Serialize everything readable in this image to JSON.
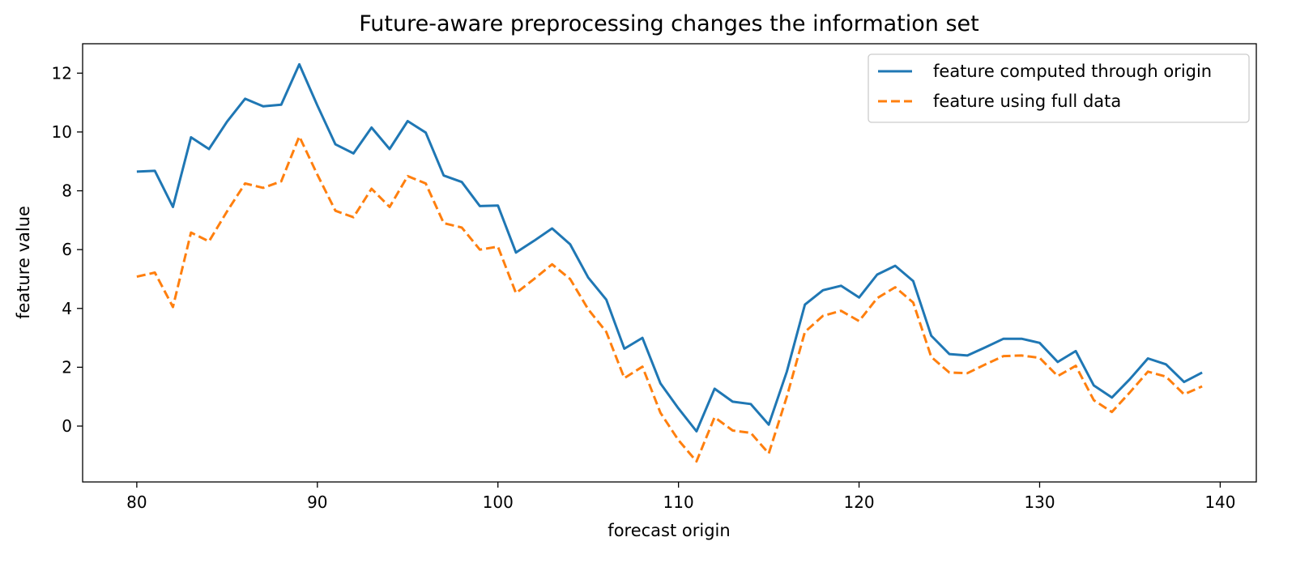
{
  "chart_data": {
    "type": "line",
    "title": "Future-aware preprocessing changes the information set",
    "xlabel": "forecast origin",
    "ylabel": "feature value",
    "xlim": [
      77,
      142
    ],
    "ylim": [
      -1.9,
      13.0
    ],
    "xticks": [
      80,
      90,
      100,
      110,
      120,
      130,
      140
    ],
    "yticks": [
      0,
      2,
      4,
      6,
      8,
      10,
      12
    ],
    "grid": false,
    "legend_position": "top-right",
    "x": [
      80,
      81,
      82,
      83,
      84,
      85,
      86,
      87,
      88,
      89,
      90,
      91,
      92,
      93,
      94,
      95,
      96,
      97,
      98,
      99,
      100,
      101,
      102,
      103,
      104,
      105,
      106,
      107,
      108,
      109,
      110,
      111,
      112,
      113,
      114,
      115,
      116,
      117,
      118,
      119,
      120,
      121,
      122,
      123,
      124,
      125,
      126,
      127,
      128,
      129,
      130,
      131,
      132,
      133,
      134,
      135,
      136,
      137,
      138,
      139
    ],
    "series": [
      {
        "name": "feature computed through origin",
        "color": "#1f77b4",
        "style": "solid",
        "values": [
          8.65,
          8.68,
          7.45,
          9.82,
          9.42,
          10.35,
          11.13,
          10.87,
          10.93,
          12.3,
          10.9,
          9.58,
          9.27,
          10.15,
          9.42,
          10.37,
          9.98,
          8.52,
          8.3,
          7.48,
          7.5,
          5.9,
          6.3,
          6.72,
          6.18,
          5.05,
          4.3,
          2.63,
          3.0,
          1.45,
          0.6,
          -0.18,
          1.27,
          0.83,
          0.75,
          0.05,
          1.85,
          4.13,
          4.62,
          4.77,
          4.37,
          5.15,
          5.45,
          4.93,
          3.07,
          2.45,
          2.4,
          2.68,
          2.97,
          2.97,
          2.83,
          2.18,
          2.55,
          1.38,
          0.97,
          1.6,
          2.3,
          2.1,
          1.5,
          1.82
        ]
      },
      {
        "name": "feature using full data",
        "color": "#ff7f0e",
        "style": "dashed",
        "values": [
          5.08,
          5.22,
          4.05,
          6.58,
          6.28,
          7.3,
          8.25,
          8.1,
          8.32,
          9.85,
          8.55,
          7.32,
          7.1,
          8.07,
          7.45,
          8.5,
          8.25,
          6.9,
          6.75,
          6.0,
          6.1,
          4.52,
          5.0,
          5.5,
          5.0,
          3.97,
          3.2,
          1.63,
          2.02,
          0.45,
          -0.48,
          -1.2,
          0.3,
          -0.15,
          -0.23,
          -0.93,
          1.0,
          3.2,
          3.75,
          3.92,
          3.57,
          4.35,
          4.72,
          4.2,
          2.35,
          1.82,
          1.8,
          2.1,
          2.38,
          2.4,
          2.32,
          1.7,
          2.05,
          0.88,
          0.48,
          1.15,
          1.85,
          1.68,
          1.08,
          1.35
        ]
      }
    ]
  }
}
